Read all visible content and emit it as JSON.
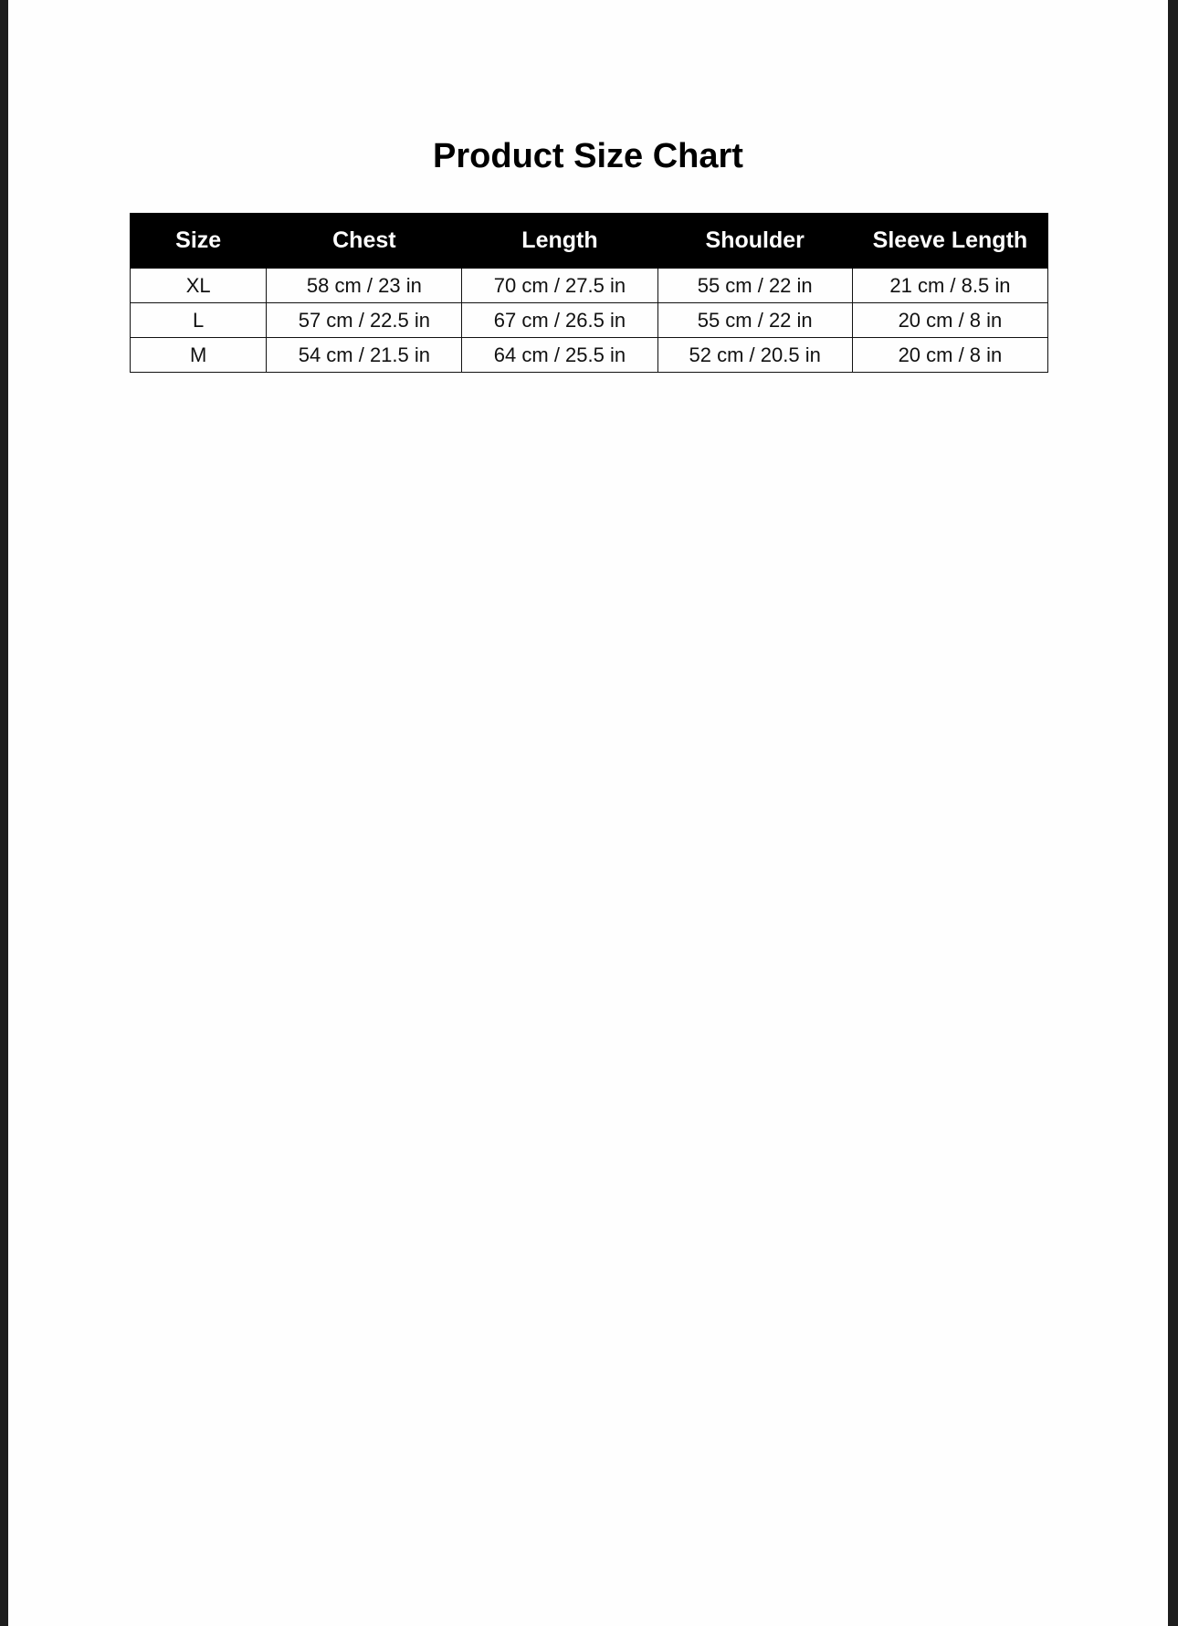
{
  "title": "Product Size Chart",
  "table": {
    "headers": [
      "Size",
      "Chest",
      "Length",
      "Shoulder",
      "Sleeve Length"
    ],
    "rows": [
      [
        "XL",
        "58 cm / 23 in",
        "70 cm / 27.5 in",
        "55 cm / 22 in",
        "21 cm / 8.5 in"
      ],
      [
        "L",
        "57 cm / 22.5 in",
        "67 cm / 26.5 in",
        "55 cm / 22 in",
        "20 cm / 8 in"
      ],
      [
        "M",
        "54 cm / 21.5 in",
        "64 cm / 25.5 in",
        "52 cm / 20.5 in",
        "20 cm / 8 in"
      ]
    ]
  },
  "colors": {
    "header_bg": "#000000",
    "header_text": "#ffffff",
    "page_bg": "#fefefe",
    "frame": "#1e1e1e"
  }
}
